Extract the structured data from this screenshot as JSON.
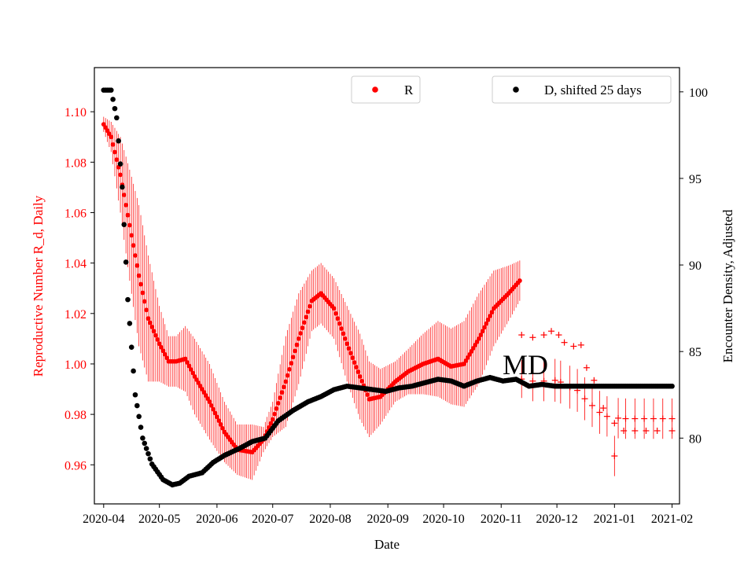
{
  "chart_data": {
    "type": "scatter",
    "title": "",
    "xlabel": "Date",
    "ylabel_left": "Reproductive Number R_d, Daily",
    "ylabel_right": "Encounter Density, Adjusted",
    "annotation": "MD",
    "x_ticks": [
      "2020-04",
      "2020-05",
      "2020-06",
      "2020-07",
      "2020-08",
      "2020-09",
      "2020-10",
      "2020-11",
      "2020-12",
      "2021-01",
      "2021-02"
    ],
    "y_left_ticks": [
      "0.96",
      "0.98",
      "1.00",
      "1.02",
      "1.04",
      "1.06",
      "1.08",
      "1.10"
    ],
    "y_right_ticks": [
      "80",
      "85",
      "90",
      "95",
      "100"
    ],
    "x_range": [
      "2020-03-27",
      "2021-02-05"
    ],
    "y_left_range": [
      0.9445,
      1.1175
    ],
    "y_right_range": [
      76.2,
      101.4
    ],
    "grid": false,
    "legend_left": {
      "label": "R",
      "color": "#ff0000",
      "position": "top-center"
    },
    "legend_right": {
      "label": "D, shifted 25 days",
      "color": "#000000",
      "position": "top-right"
    },
    "series_R": {
      "name": "R",
      "color": "#ff0000",
      "knots": [
        [
          "2020-04-01",
          1.095,
          0.003
        ],
        [
          "2020-04-05",
          1.09,
          0.006
        ],
        [
          "2020-04-10",
          1.075,
          0.015
        ],
        [
          "2020-04-15",
          1.055,
          0.022
        ],
        [
          "2020-04-20",
          1.035,
          0.028
        ],
        [
          "2020-04-25",
          1.018,
          0.025
        ],
        [
          "2020-05-01",
          1.008,
          0.015
        ],
        [
          "2020-05-06",
          1.001,
          0.01
        ],
        [
          "2020-05-10",
          1.001,
          0.01
        ],
        [
          "2020-05-15",
          1.002,
          0.013
        ],
        [
          "2020-05-20",
          0.995,
          0.015
        ],
        [
          "2020-05-28",
          0.985,
          0.015
        ],
        [
          "2020-06-05",
          0.973,
          0.012
        ],
        [
          "2020-06-12",
          0.966,
          0.01
        ],
        [
          "2020-06-20",
          0.965,
          0.011
        ],
        [
          "2020-06-26",
          0.97,
          0.005
        ],
        [
          "2020-07-01",
          0.978,
          0.007
        ],
        [
          "2020-07-08",
          0.993,
          0.018
        ],
        [
          "2020-07-15",
          1.01,
          0.018
        ],
        [
          "2020-07-22",
          1.025,
          0.012
        ],
        [
          "2020-07-27",
          1.028,
          0.012
        ],
        [
          "2020-08-03",
          1.022,
          0.012
        ],
        [
          "2020-08-10",
          1.008,
          0.015
        ],
        [
          "2020-08-17",
          0.995,
          0.017
        ],
        [
          "2020-08-22",
          0.986,
          0.015
        ],
        [
          "2020-08-28",
          0.987,
          0.011
        ],
        [
          "2020-09-05",
          0.993,
          0.008
        ],
        [
          "2020-09-12",
          0.997,
          0.009
        ],
        [
          "2020-09-20",
          1.0,
          0.012
        ],
        [
          "2020-09-28",
          1.002,
          0.015
        ],
        [
          "2020-10-05",
          0.999,
          0.015
        ],
        [
          "2020-10-12",
          1.0,
          0.017
        ],
        [
          "2020-10-20",
          1.01,
          0.018
        ],
        [
          "2020-10-28",
          1.022,
          0.015
        ],
        [
          "2020-11-05",
          1.028,
          0.011
        ],
        [
          "2020-11-11",
          1.033,
          0.008
        ]
      ],
      "late_points": [
        [
          "2020-11-12",
          0.994,
          0.0075
        ],
        [
          "2020-11-18",
          0.9932,
          0.008
        ],
        [
          "2020-11-24",
          0.9932,
          0.008
        ],
        [
          "2020-11-30",
          0.9935,
          0.0085
        ],
        [
          "2020-12-03",
          0.9928,
          0.0085
        ],
        [
          "2020-12-08",
          0.9908,
          0.0085
        ],
        [
          "2020-12-12",
          0.9895,
          0.0085
        ],
        [
          "2020-12-16",
          0.9862,
          0.0085
        ],
        [
          "2020-12-20",
          0.9835,
          0.0085
        ],
        [
          "2020-12-24",
          0.9808,
          0.0085
        ],
        [
          "2020-12-28",
          0.9792,
          0.008
        ],
        [
          "2021-01-01",
          0.9635,
          0.008
        ],
        [
          "2021-01-03",
          0.9785,
          0.008
        ],
        [
          "2021-01-07",
          0.9783,
          0.008
        ],
        [
          "2021-01-12",
          0.9783,
          0.008
        ],
        [
          "2021-01-17",
          0.9783,
          0.008
        ],
        [
          "2021-01-22",
          0.9783,
          0.008
        ],
        [
          "2021-01-27",
          0.9783,
          0.008
        ],
        [
          "2021-02-01",
          0.9783,
          0.008
        ]
      ],
      "plateau_points": [
        [
          "2020-11-12",
          1.0115
        ],
        [
          "2020-11-18",
          1.0105
        ],
        [
          "2020-11-24",
          1.0115
        ],
        [
          "2020-11-28",
          1.013
        ],
        [
          "2020-12-02",
          1.0115
        ],
        [
          "2020-12-05",
          1.0085
        ],
        [
          "2020-12-10",
          1.007
        ],
        [
          "2020-12-14",
          1.0075
        ],
        [
          "2020-12-17",
          0.9985
        ],
        [
          "2020-12-21",
          0.9935
        ],
        [
          "2020-12-26",
          0.9825
        ],
        [
          "2021-01-01",
          0.9765
        ],
        [
          "2021-01-06",
          0.9735
        ],
        [
          "2021-01-12",
          0.9735
        ],
        [
          "2021-01-18",
          0.9735
        ],
        [
          "2021-01-24",
          0.9735
        ],
        [
          "2021-02-01",
          0.9735
        ]
      ]
    },
    "series_D": {
      "name": "D, shifted 25 days",
      "color": "#000000",
      "knots": [
        [
          "2020-04-01",
          100.1
        ],
        [
          "2020-04-05",
          100.1
        ],
        [
          "2020-04-08",
          98.5
        ],
        [
          "2020-04-11",
          94.5
        ],
        [
          "2020-04-14",
          88.0
        ],
        [
          "2020-04-18",
          82.5
        ],
        [
          "2020-04-22",
          80.0
        ],
        [
          "2020-04-27",
          78.5
        ],
        [
          "2020-05-03",
          77.6
        ],
        [
          "2020-05-08",
          77.3
        ],
        [
          "2020-05-12",
          77.4
        ],
        [
          "2020-05-17",
          77.8
        ],
        [
          "2020-05-24",
          78.0
        ],
        [
          "2020-05-30",
          78.6
        ],
        [
          "2020-06-05",
          79.0
        ],
        [
          "2020-06-13",
          79.4
        ],
        [
          "2020-06-20",
          79.8
        ],
        [
          "2020-06-27",
          80.0
        ],
        [
          "2020-07-04",
          81.0
        ],
        [
          "2020-07-12",
          81.6
        ],
        [
          "2020-07-20",
          82.1
        ],
        [
          "2020-07-27",
          82.4
        ],
        [
          "2020-08-03",
          82.8
        ],
        [
          "2020-08-10",
          83.0
        ],
        [
          "2020-08-17",
          82.9
        ],
        [
          "2020-08-24",
          82.8
        ],
        [
          "2020-08-31",
          82.7
        ],
        [
          "2020-09-07",
          82.9
        ],
        [
          "2020-09-14",
          83.0
        ],
        [
          "2020-09-21",
          83.2
        ],
        [
          "2020-09-28",
          83.4
        ],
        [
          "2020-10-05",
          83.3
        ],
        [
          "2020-10-12",
          83.0
        ],
        [
          "2020-10-19",
          83.3
        ],
        [
          "2020-10-26",
          83.5
        ],
        [
          "2020-11-02",
          83.3
        ],
        [
          "2020-11-09",
          83.4
        ],
        [
          "2020-11-16",
          83.0
        ],
        [
          "2020-11-23",
          83.1
        ],
        [
          "2020-11-30",
          83.0
        ],
        [
          "2020-12-10",
          83.0
        ],
        [
          "2021-01-01",
          83.0
        ],
        [
          "2021-02-01",
          83.0
        ]
      ]
    }
  }
}
